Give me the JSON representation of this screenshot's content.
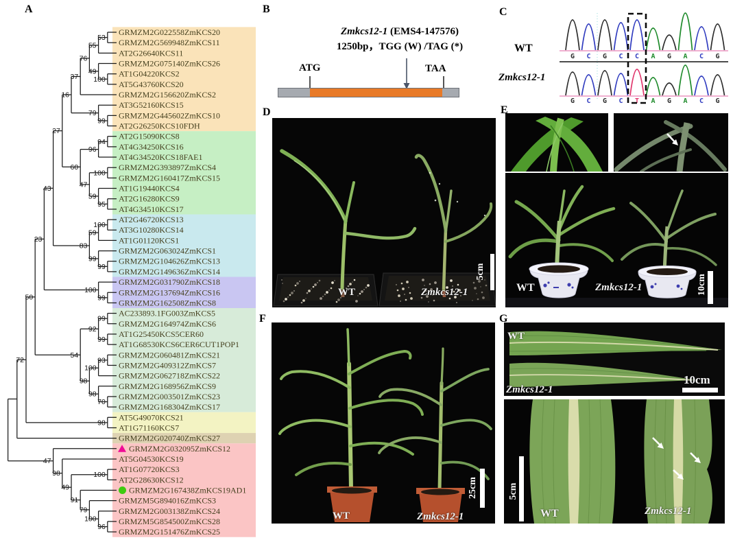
{
  "panels": {
    "a": "A",
    "b": "B",
    "c": "C",
    "d": "D",
    "e": "E",
    "f": "F",
    "g": "G"
  },
  "tree": {
    "label_color": "#45401f",
    "groups": [
      "#fae3b9",
      "#c6efc4",
      "#c9e9ee",
      "#c9c6f2",
      "#d7ebd9",
      "#f3f3c3",
      "#ded2b2",
      "#fbc5c5"
    ],
    "leaves": [
      {
        "label": "GRMZM2G022558ZmKCS20",
        "group": 0
      },
      {
        "label": "GRMZM2G569948ZmKCS11",
        "group": 0
      },
      {
        "label": "AT2G26640KCS11",
        "group": 0
      },
      {
        "label": "GRMZM2G075140ZmKCS26",
        "group": 0
      },
      {
        "label": "AT1G04220KCS2",
        "group": 0
      },
      {
        "label": "AT5G43760KCS20",
        "group": 0
      },
      {
        "label": "GRMZM2G156620ZmKCS2",
        "group": 0
      },
      {
        "label": "AT3G52160KCS15",
        "group": 0
      },
      {
        "label": "GRMZM2G445602ZmKCS10",
        "group": 0
      },
      {
        "label": "AT2G26250KCS10FDH",
        "group": 0
      },
      {
        "label": "AT2G15090KCS8",
        "group": 1
      },
      {
        "label": "AT4G34250KCS16",
        "group": 1
      },
      {
        "label": "AT4G34520KCS18FAE1",
        "group": 1
      },
      {
        "label": "GRMZM2G393897ZmKCS4",
        "group": 1
      },
      {
        "label": "GRMZM2G160417ZmKCS15",
        "group": 1
      },
      {
        "label": "AT1G19440KCS4",
        "group": 1
      },
      {
        "label": "AT2G16280KCS9",
        "group": 1
      },
      {
        "label": "AT4G34510KCS17",
        "group": 1
      },
      {
        "label": "AT2G46720KCS13",
        "group": 2
      },
      {
        "label": "AT3G10280KCS14",
        "group": 2
      },
      {
        "label": "AT1G01120KCS1",
        "group": 2
      },
      {
        "label": "GRMZM2G063024ZmKCS1",
        "group": 2
      },
      {
        "label": "GRMZM2G104626ZmKCS13",
        "group": 2
      },
      {
        "label": "GRMZM2G149636ZmKCS14",
        "group": 2
      },
      {
        "label": "GRMZM2G031790ZmKCS18",
        "group": 3
      },
      {
        "label": "GRMZM2G137694ZmKCS16",
        "group": 3
      },
      {
        "label": "GRMZM2G162508ZmKCS8",
        "group": 3
      },
      {
        "label": "AC233893.1FG003ZmKCS5",
        "group": 4
      },
      {
        "label": "GRMZM2G164974ZmKCS6",
        "group": 4
      },
      {
        "label": "AT1G25450KCS5CER60",
        "group": 4
      },
      {
        "label": "AT1G68530KCS6CER6CUT1POP1",
        "group": 4
      },
      {
        "label": "GRMZM2G060481ZmKCS21",
        "group": 4
      },
      {
        "label": "GRMZM2G409312ZmKCS7",
        "group": 4
      },
      {
        "label": "GRMZM2G062718ZmKCS22",
        "group": 4
      },
      {
        "label": "GRMZM2G168956ZmKCS9",
        "group": 4
      },
      {
        "label": "GRMZM2G003501ZmKCS23",
        "group": 4
      },
      {
        "label": "GRMZM2G168304ZmKCS17",
        "group": 4
      },
      {
        "label": "AT5G49070KCS21",
        "group": 5
      },
      {
        "label": "AT1G71160KCS7",
        "group": 5
      },
      {
        "label": "GRMZM2G020740ZmKCS27",
        "group": 6
      },
      {
        "label": "GRMZM2G032095ZmKCS12",
        "group": 7,
        "marker": "triangle",
        "marker_color": "#ef0a96"
      },
      {
        "label": "AT5G04530KCS19",
        "group": 7
      },
      {
        "label": "AT1G07720KCS3",
        "group": 7
      },
      {
        "label": "AT2G28630KCS12",
        "group": 7
      },
      {
        "label": "GRMZM2G167438ZmKCS19AD1",
        "group": 7,
        "marker": "circle",
        "marker_color": "#3ecb10"
      },
      {
        "label": "GRMZM5G894016ZmKCS3",
        "group": 7
      },
      {
        "label": "GRMZM2G003138ZmKCS24",
        "group": 7
      },
      {
        "label": "GRMZM5G854500ZmKCS28",
        "group": 7
      },
      {
        "label": "GRMZM2G151476ZmKCS25",
        "group": 7
      }
    ],
    "topology": {
      "s": "",
      "c": [
        {
          "s": "",
          "c": [
            {
              "s": "72",
              "c": [
                {
                  "s": "50",
                  "c": [
                    {
                      "s": "23",
                      "c": [
                        {
                          "s": "43",
                          "c": [
                            {
                              "s": "27",
                              "c": [
                                {
                                  "s": "16",
                                  "c": [
                                    {
                                      "s": "37",
                                      "c": [
                                        {
                                          "s": "76",
                                          "c": [
                                            {
                                              "s": "55",
                                              "c": [
                                                {
                                                  "s": "53",
                                                  "c": [
                                                    0,
                                                    1
                                                  ]
                                                },
                                                2
                                              ]
                                            },
                                            {
                                              "s": "49",
                                              "c": [
                                                3,
                                                {
                                                  "s": "100",
                                                  "c": [
                                                    4,
                                                    5
                                                  ]
                                                }
                                              ]
                                            }
                                          ]
                                        },
                                        6
                                      ]
                                    },
                                    {
                                      "s": "79",
                                      "c": [
                                        7,
                                        {
                                          "s": "99",
                                          "c": [
                                            8,
                                            9
                                          ]
                                        }
                                      ]
                                    }
                                  ]
                                },
                                {
                                  "s": "60",
                                  "c": [
                                    {
                                      "s": "96",
                                      "c": [
                                        {
                                          "s": "94",
                                          "c": [
                                            10,
                                            11
                                          ]
                                        },
                                        12
                                      ]
                                    },
                                    {
                                      "s": "47",
                                      "c": [
                                        {
                                          "s": "100",
                                          "c": [
                                            13,
                                            14
                                          ]
                                        },
                                        {
                                          "s": "59",
                                          "c": [
                                            15,
                                            {
                                              "s": "95",
                                              "c": [
                                                16,
                                                17
                                              ]
                                            }
                                          ]
                                        }
                                      ]
                                    }
                                  ]
                                }
                              ]
                            },
                            {
                              "s": "83",
                              "c": [
                                {
                                  "s": "59",
                                  "c": [
                                    {
                                      "s": "100",
                                      "c": [
                                        18,
                                        19
                                      ]
                                    },
                                    20
                                  ]
                                },
                                {
                                  "s": "99",
                                  "c": [
                                    21,
                                    {
                                      "s": "99",
                                      "c": [
                                        22,
                                        23
                                      ]
                                    }
                                  ]
                                }
                              ]
                            }
                          ]
                        },
                        {
                          "s": "100",
                          "c": [
                            24,
                            {
                              "s": "99",
                              "c": [
                                25,
                                26
                              ]
                            }
                          ]
                        }
                      ]
                    },
                    {
                      "s": "54",
                      "c": [
                        {
                          "s": "92",
                          "c": [
                            {
                              "s": "99",
                              "c": [
                                27,
                                28
                              ]
                            },
                            {
                              "s": "99",
                              "c": [
                                29,
                                30
                              ]
                            }
                          ]
                        },
                        {
                          "s": "98",
                          "c": [
                            {
                              "s": "100",
                              "c": [
                                {
                                  "s": "93",
                                  "c": [
                                    31,
                                    32
                                  ]
                                },
                                33
                              ]
                            },
                            {
                              "s": "98",
                              "c": [
                                34,
                                {
                                  "s": "70",
                                  "c": [
                                    35,
                                    36
                                  ]
                                }
                              ]
                            }
                          ]
                        }
                      ]
                    }
                  ]
                },
                {
                  "s": "98",
                  "c": [
                    37,
                    38
                  ]
                }
              ]
            },
            39
          ]
        },
        {
          "s": "47",
          "c": [
            40,
            {
              "s": "98",
              "c": [
                41,
                {
                  "s": "49",
                  "c": [
                    {
                      "s": "100",
                      "c": [
                        42,
                        43
                      ]
                    },
                    {
                      "s": "91",
                      "c": [
                        44,
                        {
                          "s": "79",
                          "c": [
                            45,
                            {
                              "s": "100",
                              "c": [
                                46,
                                {
                                  "s": "96",
                                  "c": [
                                    47,
                                    48
                                  ]
                                }
                              ]
                            }
                          ]
                        }
                      ]
                    }
                  ]
                }
              ]
            }
          ]
        }
      ]
    }
  },
  "panelB": {
    "gene": "Zmkcs12-1",
    "allele_info": " (EMS4-147576)",
    "mutation": "1250bp，TGG (W) /TAG (*)",
    "start": "ATG",
    "stop": "TAA",
    "cds_color": "#e87a28",
    "utr_color": "#a6aab0"
  },
  "panelC": {
    "wt": "WT",
    "mutant": "Zmkcs12-1",
    "wt_seq": "GCGCCAGACG",
    "mut_seq": "GCGCTAGACG",
    "highlight_index": 4,
    "base_colors": {
      "G": "#2b2b2b",
      "C": "#2f3bbf",
      "A": "#1d8a2a",
      "T": "#e0356b"
    }
  },
  "panelD": {
    "wt": "WT",
    "mutant": "Zmkcs12-1",
    "scale": "5cm"
  },
  "panelE": {
    "wt": "WT",
    "mutant": "Zmkcs12-1",
    "scale": "10cm"
  },
  "panelF": {
    "wt": "WT",
    "mutant": "Zmkcs12-1",
    "scale": "25cm"
  },
  "panelG": {
    "top": {
      "wt": "WT",
      "mutant": "Zmkcs12-1",
      "scale": "10cm"
    },
    "bottom": {
      "wt": "WT",
      "mutant": "Zmkcs12-1",
      "scale": "5cm"
    }
  }
}
